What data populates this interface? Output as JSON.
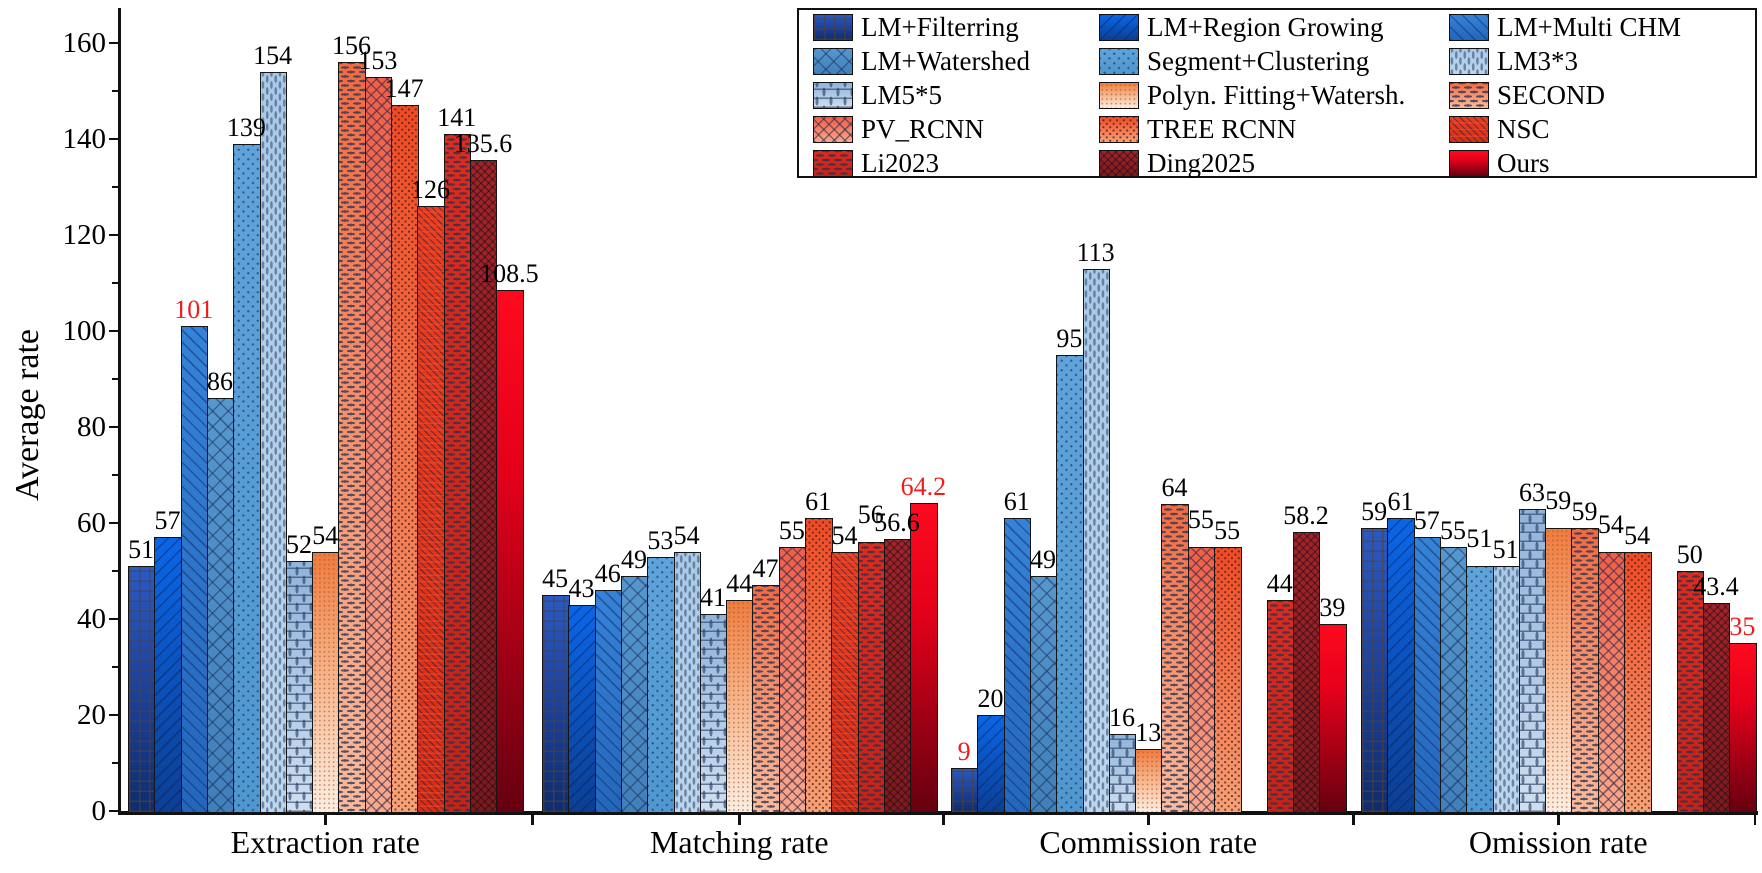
{
  "chart_data": {
    "type": "bar",
    "title": "",
    "ylabel": "Average rate",
    "xlabel": "",
    "ylim": [
      0,
      167
    ],
    "yticks_major": [
      0,
      20,
      40,
      60,
      80,
      100,
      120,
      140,
      160
    ],
    "yticks_minor_step": 10,
    "grid": "off",
    "legend_position": "top-right",
    "categories": [
      "Extraction rate",
      "Matching rate",
      "Commission rate",
      "Omission rate"
    ],
    "series": [
      {
        "name": "LM+Filterring",
        "pattern": "grid",
        "color_top": "#2a5ac4",
        "color_bottom": "#0f2d6d",
        "values": [
          51,
          45,
          9,
          59
        ]
      },
      {
        "name": "LM+Region Growing",
        "pattern": "diagonal-up",
        "color_top": "#0a66e8",
        "color_bottom": "#0b3f94",
        "values": [
          57,
          43,
          20,
          61
        ]
      },
      {
        "name": "LM+Multi CHM",
        "pattern": "diagonal-down",
        "color_top": "#3583d8",
        "color_bottom": "#2466bb",
        "values": [
          101,
          46,
          61,
          57
        ]
      },
      {
        "name": "LM+Watershed",
        "pattern": "crosshatch",
        "color_top": "#5697ce",
        "color_bottom": "#417fba",
        "values": [
          86,
          49,
          49,
          55
        ]
      },
      {
        "name": "Segment+Clustering",
        "pattern": "dots",
        "color_top": "#5fa3da",
        "color_bottom": "#4f97d0",
        "values": [
          139,
          53,
          95,
          51
        ]
      },
      {
        "name": "LM3*3",
        "pattern": "vertical-dashes",
        "color_top": "#a8cae6",
        "color_bottom": "#bcd6ec",
        "values": [
          154,
          54,
          113,
          51
        ]
      },
      {
        "name": "LM5*5",
        "pattern": "brick",
        "color_top": "#90b4da",
        "color_bottom": "#cfdfef",
        "values": [
          52,
          41,
          16,
          63
        ]
      },
      {
        "name": "Polyn. Fitting+Watersh.",
        "pattern": "dot-grid",
        "color_top": "#f07c3e",
        "color_bottom": "#fdeee2",
        "values": [
          54,
          44,
          13,
          59
        ]
      },
      {
        "name": "SECOND",
        "pattern": "horizontal-dashes",
        "color_top": "#f16a41",
        "color_bottom": "#f9bb9c",
        "values": [
          156,
          47,
          64,
          59
        ]
      },
      {
        "name": "PV_RCNN",
        "pattern": "diamond",
        "color_top": "#f25e46",
        "color_bottom": "#f9a98c",
        "values": [
          153,
          55,
          55,
          54
        ]
      },
      {
        "name": "TREE RCNN",
        "pattern": "dots",
        "color_top": "#ee4a25",
        "color_bottom": "#f6a277",
        "values": [
          147,
          61,
          55,
          54
        ]
      },
      {
        "name": "NSC",
        "pattern": "diagonal-dashes",
        "color_top": "#ea3e20",
        "color_bottom": "#d72d15",
        "values": [
          126,
          54,
          null,
          null
        ]
      },
      {
        "name": "Li2023",
        "pattern": "horizontal-dashes",
        "color_top": "#dc2b1f",
        "color_bottom": "#c62217",
        "values": [
          141,
          56,
          44,
          50
        ]
      },
      {
        "name": "Ding2025",
        "pattern": "zigzag",
        "color_top": "#a3232a",
        "color_bottom": "#7e191d",
        "values": [
          135.6,
          56.6,
          58.2,
          43.4
        ]
      },
      {
        "name": "Ours",
        "pattern": "solid-gradient",
        "color_top": "#fd0a1e",
        "color_bottom": "#650010",
        "values": [
          108.5,
          64.2,
          39,
          35
        ]
      }
    ],
    "value_label_color_default": "#000000",
    "value_label_color_highlight": "#ee1c1c",
    "highlighted_value_labels": [
      {
        "category": "Extraction rate",
        "series": "LM+Multi CHM",
        "value": 101
      },
      {
        "category": "Matching rate",
        "series": "Ours",
        "value": 64.2
      },
      {
        "category": "Commission rate",
        "series": "LM+Filterring",
        "value": 9
      },
      {
        "category": "Omission rate",
        "series": "Ours",
        "value": 35
      }
    ],
    "axis_color": "#111111",
    "background_color": "#ffffff"
  }
}
